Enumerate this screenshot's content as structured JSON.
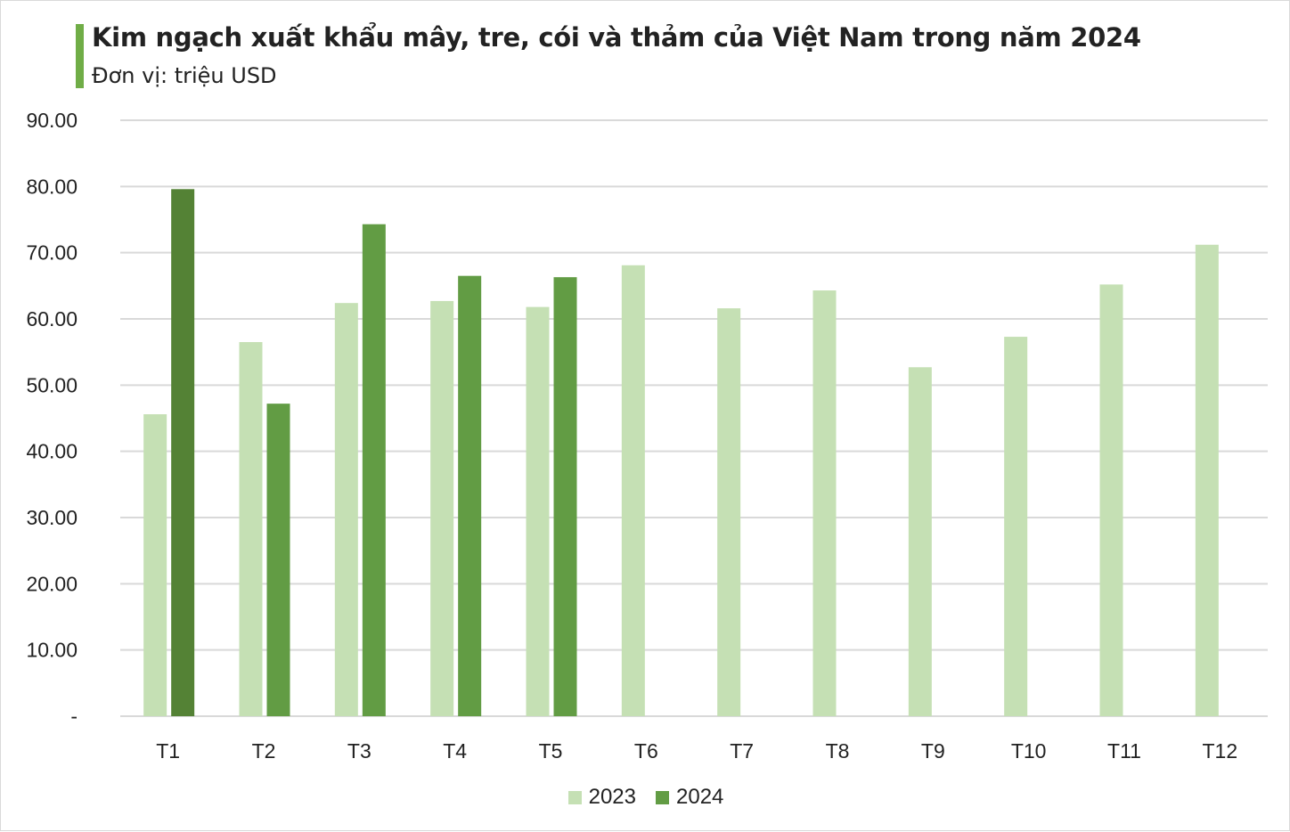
{
  "chart_data": {
    "type": "bar",
    "title": "Kim ngạch xuất khẩu mây, tre, cói và thảm của Việt Nam trong năm 2024",
    "subtitle": "Đơn vị: triệu USD",
    "categories": [
      "T1",
      "T2",
      "T3",
      "T4",
      "T5",
      "T6",
      "T7",
      "T8",
      "T9",
      "T10",
      "T11",
      "T12"
    ],
    "series": [
      {
        "name": "2023",
        "color": "#C5E0B4",
        "values": [
          45.6,
          56.5,
          62.4,
          62.7,
          61.8,
          68.1,
          61.6,
          64.3,
          52.7,
          57.3,
          65.2,
          71.2
        ]
      },
      {
        "name": "2024",
        "color": "#629C44",
        "highlight_color": "#548235",
        "values": [
          79.6,
          47.2,
          74.3,
          66.5,
          66.3,
          null,
          null,
          null,
          null,
          null,
          null,
          null
        ]
      }
    ],
    "ylim": [
      0,
      90
    ],
    "yticks": [
      "-",
      "10.00",
      "20.00",
      "30.00",
      "40.00",
      "50.00",
      "60.00",
      "70.00",
      "80.00",
      "90.00"
    ],
    "grid": true,
    "legend": "bottom",
    "accent_color": "#70AD47"
  }
}
